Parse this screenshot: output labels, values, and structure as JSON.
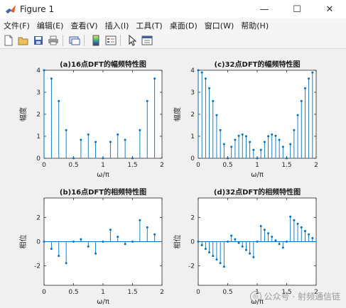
{
  "window": {
    "title": "Figure 1",
    "controls": {
      "minimize": "—",
      "maximize": "☐",
      "close": "✕"
    }
  },
  "menu": {
    "items": [
      "文件(F)",
      "编辑(E)",
      "查看(V)",
      "插入(I)",
      "工具(T)",
      "桌面(D)",
      "窗口(W)",
      "帮助(H)"
    ]
  },
  "toolbar": {
    "icons": [
      "new-figure-icon",
      "open-file-icon",
      "save-icon",
      "print-icon",
      "link-plot-icon",
      "insert-colorbar-icon",
      "insert-legend-icon",
      "edit-plot-icon",
      "property-inspector-icon"
    ]
  },
  "watermark": {
    "text": "公众号 · 射频通信链"
  },
  "colors": {
    "stem": "#0072bd",
    "axes_bg": "#ffffff",
    "figure_bg": "#f0f0f0"
  },
  "chart_data": [
    {
      "type": "stem",
      "title": "(a)16点DFT的幅频特性图",
      "xlabel": "ω/π",
      "ylabel": "幅度",
      "xlim": [
        0,
        2
      ],
      "ylim": [
        0,
        4
      ],
      "xticks": [
        "0",
        "0.5",
        "1",
        "1.5",
        "2"
      ],
      "yticks": [
        "0",
        "1",
        "2",
        "3",
        "4"
      ],
      "x": [
        0,
        0.125,
        0.25,
        0.375,
        0.5,
        0.625,
        0.75,
        0.875,
        1.0,
        1.125,
        1.25,
        1.375,
        1.5,
        1.625,
        1.75,
        1.875
      ],
      "y": [
        4.0,
        3.62,
        2.6,
        1.28,
        0.0,
        0.84,
        1.08,
        0.74,
        0.0,
        0.74,
        1.08,
        0.84,
        0.0,
        1.28,
        2.6,
        3.62
      ]
    },
    {
      "type": "stem",
      "title": "(c)32点DFT的幅频特性图",
      "xlabel": "ω/π",
      "ylabel": "幅度",
      "xlim": [
        0,
        2
      ],
      "ylim": [
        0,
        4
      ],
      "xticks": [
        "0",
        "0.5",
        "1",
        "1.5",
        "2"
      ],
      "yticks": [
        "0",
        "1",
        "2",
        "3",
        "4"
      ],
      "x": [
        0,
        0.0625,
        0.125,
        0.1875,
        0.25,
        0.3125,
        0.375,
        0.4375,
        0.5,
        0.5625,
        0.625,
        0.6875,
        0.75,
        0.8125,
        0.875,
        0.9375,
        1.0,
        1.0625,
        1.125,
        1.1875,
        1.25,
        1.3125,
        1.375,
        1.4375,
        1.5,
        1.5625,
        1.625,
        1.6875,
        1.75,
        1.8125,
        1.875,
        1.9375
      ],
      "y": [
        4.0,
        3.9,
        3.62,
        3.18,
        2.6,
        1.96,
        1.28,
        0.64,
        0.0,
        0.52,
        0.84,
        1.02,
        1.08,
        1.0,
        0.74,
        0.38,
        0.0,
        0.38,
        0.74,
        1.0,
        1.08,
        1.02,
        0.84,
        0.52,
        0.0,
        0.64,
        1.28,
        1.96,
        2.6,
        3.18,
        3.62,
        3.9
      ]
    },
    {
      "type": "stem",
      "title": "(b)16点DFT的相频特性图",
      "xlabel": "ω/π",
      "ylabel": "相位",
      "xlim": [
        0,
        2
      ],
      "ylim": [
        -3.6,
        3.6
      ],
      "xticks": [
        "0",
        "0.5",
        "1",
        "1.5",
        "2"
      ],
      "yticks": [
        "2",
        "0",
        "-2"
      ],
      "ytick_values": [
        2,
        0,
        -2
      ],
      "x": [
        0,
        0.125,
        0.25,
        0.375,
        0.5,
        0.625,
        0.75,
        0.875,
        1.0,
        1.125,
        1.25,
        1.375,
        1.5,
        1.625,
        1.75,
        1.875
      ],
      "y": [
        0.0,
        -0.59,
        -1.18,
        -1.77,
        0.0,
        0.2,
        -0.4,
        -0.98,
        0.0,
        0.98,
        0.4,
        -0.2,
        0.0,
        1.77,
        1.18,
        0.59
      ]
    },
    {
      "type": "stem",
      "title": "(d)32点DFT的相频特性图",
      "xlabel": "ω/π",
      "ylabel": "相位",
      "xlim": [
        0,
        2
      ],
      "ylim": [
        -3.6,
        3.6
      ],
      "xticks": [
        "0",
        "0.5",
        "1",
        "1.5",
        "2"
      ],
      "yticks": [
        "2",
        "0",
        "-2"
      ],
      "ytick_values": [
        2,
        0,
        -2
      ],
      "x": [
        0,
        0.0625,
        0.125,
        0.1875,
        0.25,
        0.3125,
        0.375,
        0.4375,
        0.5,
        0.5625,
        0.625,
        0.6875,
        0.75,
        0.8125,
        0.875,
        0.9375,
        1.0,
        1.0625,
        1.125,
        1.1875,
        1.25,
        1.3125,
        1.375,
        1.4375,
        1.5,
        1.5625,
        1.625,
        1.6875,
        1.75,
        1.8125,
        1.875,
        1.9375
      ],
      "y": [
        0.0,
        -0.29,
        -0.59,
        -0.88,
        -1.18,
        -1.47,
        -1.77,
        -2.06,
        0.0,
        0.49,
        0.2,
        -0.1,
        -0.4,
        -0.69,
        -0.98,
        -1.28,
        0.0,
        1.28,
        0.98,
        0.69,
        0.4,
        0.1,
        -0.2,
        -0.49,
        0.0,
        2.06,
        1.77,
        1.47,
        1.18,
        0.88,
        0.59,
        0.29
      ]
    }
  ]
}
